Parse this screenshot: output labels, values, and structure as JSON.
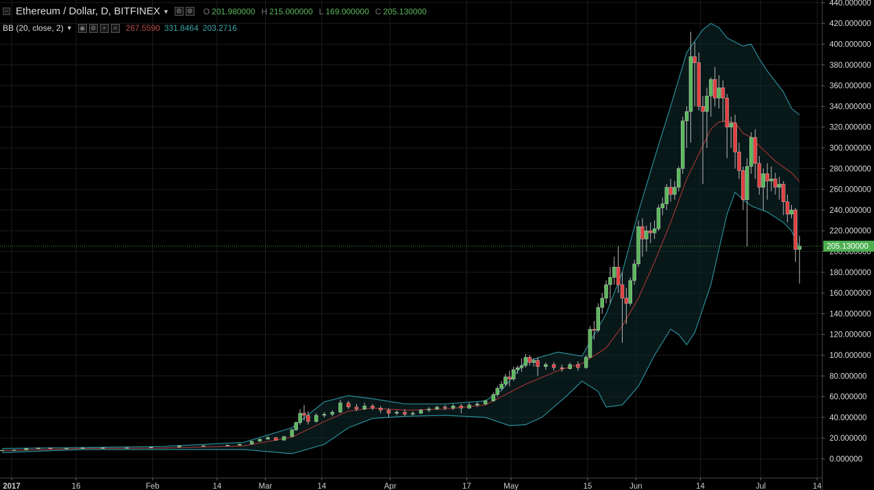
{
  "header": {
    "symbol_title": "Ethereum / Dollar, D, BITFINEX",
    "ohlc": [
      {
        "key": "O",
        "value": "201.980000"
      },
      {
        "key": "H",
        "value": "215.000000"
      },
      {
        "key": "L",
        "value": "169.000000"
      },
      {
        "key": "C",
        "value": "205.130000"
      }
    ]
  },
  "indicator": {
    "title": "BB (20, close, 2)",
    "values": [
      "267.5590",
      "331.8464",
      "203.2716"
    ],
    "value_colors": [
      "#b84a4a",
      "#3aa6a6",
      "#3aa6a6"
    ]
  },
  "colors": {
    "background": "#000000",
    "grid": "#1e1e1e",
    "up": "#5cb85c",
    "down": "#e04040",
    "bb_basis": "#a03535",
    "bb_band": "#2a8f9a",
    "last_price": "#4caf50"
  },
  "last_price_label": "205.130000",
  "chart_data": {
    "type": "candlestick",
    "title": "Ethereum / Dollar, D, BITFINEX",
    "ylim": [
      -10,
      440
    ],
    "y_ticks": [
      "440.000000",
      "420.000000",
      "400.000000",
      "380.000000",
      "360.000000",
      "340.000000",
      "320.000000",
      "300.000000",
      "280.000000",
      "260.000000",
      "240.000000",
      "220.000000",
      "200.000000",
      "180.000000",
      "160.000000",
      "140.000000",
      "120.000000",
      "100.000000",
      "80.000000",
      "60.000000",
      "40.000000",
      "20.000000",
      "0.000000"
    ],
    "x_ticks": [
      "2017",
      "16",
      "Feb",
      "14",
      "Mar",
      "14",
      "Apr",
      "17",
      "May",
      "15",
      "Jun",
      "14",
      "Jul",
      "14"
    ],
    "grid": true,
    "last_price": 205.13,
    "series_count": 1,
    "ohlc_keypoints_note": "",
    "candles": [
      {
        "d": 0,
        "o": 8.0,
        "h": 8.5,
        "c": 8.3,
        "l": 7.9
      },
      {
        "d": 3,
        "o": 8.3,
        "h": 8.9,
        "c": 8.6,
        "l": 8.1
      },
      {
        "d": 6,
        "o": 8.6,
        "h": 10.5,
        "c": 10.0,
        "l": 8.5
      },
      {
        "d": 9,
        "o": 10.0,
        "h": 11.0,
        "c": 10.4,
        "l": 9.8
      },
      {
        "d": 12,
        "o": 10.4,
        "h": 10.8,
        "c": 10.0,
        "l": 9.8
      },
      {
        "d": 16,
        "o": 10.0,
        "h": 10.5,
        "c": 10.2,
        "l": 9.9
      },
      {
        "d": 20,
        "o": 10.2,
        "h": 10.8,
        "c": 10.6,
        "l": 10.1
      },
      {
        "d": 25,
        "o": 10.6,
        "h": 11.0,
        "c": 10.7,
        "l": 10.4
      },
      {
        "d": 31,
        "o": 10.7,
        "h": 11.1,
        "c": 10.8,
        "l": 10.5
      },
      {
        "d": 37,
        "o": 10.8,
        "h": 11.5,
        "c": 11.3,
        "l": 10.7
      },
      {
        "d": 44,
        "o": 11.3,
        "h": 13.0,
        "c": 12.6,
        "l": 11.2
      },
      {
        "d": 50,
        "o": 12.6,
        "h": 13.0,
        "c": 12.8,
        "l": 12.4
      },
      {
        "d": 56,
        "o": 12.8,
        "h": 13.5,
        "c": 13.1,
        "l": 12.6
      },
      {
        "d": 59,
        "o": 13.1,
        "h": 14.5,
        "c": 14.2,
        "l": 13.0
      },
      {
        "d": 62,
        "o": 14.2,
        "h": 17.5,
        "c": 17.0,
        "l": 14.0
      },
      {
        "d": 64,
        "o": 17.0,
        "h": 19.5,
        "c": 19.0,
        "l": 16.5
      },
      {
        "d": 66,
        "o": 19.0,
        "h": 22.0,
        "c": 20.5,
        "l": 18.5
      },
      {
        "d": 68,
        "o": 20.5,
        "h": 21.0,
        "c": 18.0,
        "l": 17.5
      },
      {
        "d": 70,
        "o": 18.0,
        "h": 22.0,
        "c": 21.5,
        "l": 17.8
      },
      {
        "d": 72,
        "o": 21.5,
        "h": 29.0,
        "c": 28.0,
        "l": 21.0
      },
      {
        "d": 73,
        "o": 28.0,
        "h": 36.0,
        "c": 35.0,
        "l": 27.0
      },
      {
        "d": 74,
        "o": 35.0,
        "h": 48.0,
        "c": 44.0,
        "l": 33.0
      },
      {
        "d": 75,
        "o": 44.0,
        "h": 52.0,
        "c": 42.0,
        "l": 37.0
      },
      {
        "d": 76,
        "o": 42.0,
        "h": 46.0,
        "c": 36.0,
        "l": 33.0
      },
      {
        "d": 78,
        "o": 36.0,
        "h": 44.0,
        "c": 42.0,
        "l": 35.0
      },
      {
        "d": 80,
        "o": 42.0,
        "h": 45.0,
        "c": 43.0,
        "l": 40.0
      },
      {
        "d": 82,
        "o": 43.0,
        "h": 47.0,
        "c": 45.0,
        "l": 41.0
      },
      {
        "d": 84,
        "o": 45.0,
        "h": 57.0,
        "c": 54.0,
        "l": 44.0
      },
      {
        "d": 86,
        "o": 54.0,
        "h": 56.0,
        "c": 50.0,
        "l": 48.0
      },
      {
        "d": 88,
        "o": 50.0,
        "h": 53.0,
        "c": 48.0,
        "l": 46.0
      },
      {
        "d": 90,
        "o": 48.0,
        "h": 54.0,
        "c": 51.0,
        "l": 47.0
      },
      {
        "d": 92,
        "o": 51.0,
        "h": 53.0,
        "c": 49.0,
        "l": 47.0
      },
      {
        "d": 94,
        "o": 49.0,
        "h": 51.0,
        "c": 47.0,
        "l": 44.0
      },
      {
        "d": 96,
        "o": 47.0,
        "h": 49.0,
        "c": 44.0,
        "l": 40.0
      },
      {
        "d": 98,
        "o": 44.0,
        "h": 47.0,
        "c": 45.0,
        "l": 42.0
      },
      {
        "d": 100,
        "o": 45.0,
        "h": 48.0,
        "c": 43.0,
        "l": 41.0
      },
      {
        "d": 102,
        "o": 43.0,
        "h": 46.0,
        "c": 44.0,
        "l": 42.0
      },
      {
        "d": 104,
        "o": 44.0,
        "h": 48.0,
        "c": 47.0,
        "l": 43.0
      },
      {
        "d": 106,
        "o": 47.0,
        "h": 50.0,
        "c": 48.0,
        "l": 45.0
      },
      {
        "d": 108,
        "o": 48.0,
        "h": 51.0,
        "c": 50.0,
        "l": 47.0
      },
      {
        "d": 110,
        "o": 50.0,
        "h": 52.0,
        "c": 49.0,
        "l": 47.0
      },
      {
        "d": 112,
        "o": 49.0,
        "h": 53.0,
        "c": 51.0,
        "l": 47.0
      },
      {
        "d": 114,
        "o": 51.0,
        "h": 53.0,
        "c": 49.0,
        "l": 44.0
      },
      {
        "d": 116,
        "o": 49.0,
        "h": 54.0,
        "c": 52.0,
        "l": 48.0
      },
      {
        "d": 118,
        "o": 52.0,
        "h": 55.0,
        "c": 53.0,
        "l": 50.0
      },
      {
        "d": 120,
        "o": 53.0,
        "h": 57.0,
        "c": 56.0,
        "l": 52.0
      },
      {
        "d": 122,
        "o": 56.0,
        "h": 64.0,
        "c": 62.0,
        "l": 55.0
      },
      {
        "d": 123,
        "o": 62.0,
        "h": 70.0,
        "c": 68.0,
        "l": 60.0
      },
      {
        "d": 124,
        "o": 68.0,
        "h": 75.0,
        "c": 72.0,
        "l": 66.0
      },
      {
        "d": 125,
        "o": 72.0,
        "h": 82.0,
        "c": 79.0,
        "l": 70.0
      },
      {
        "d": 126,
        "o": 79.0,
        "h": 85.0,
        "c": 77.0,
        "l": 70.0
      },
      {
        "d": 127,
        "o": 77.0,
        "h": 89.0,
        "c": 86.0,
        "l": 75.0
      },
      {
        "d": 128,
        "o": 86.0,
        "h": 90.0,
        "c": 88.0,
        "l": 82.0
      },
      {
        "d": 129,
        "o": 88.0,
        "h": 97.0,
        "c": 90.0,
        "l": 84.0
      },
      {
        "d": 130,
        "o": 90.0,
        "h": 101.0,
        "c": 98.0,
        "l": 88.0
      },
      {
        "d": 131,
        "o": 98.0,
        "h": 100.0,
        "c": 93.0,
        "l": 90.0
      },
      {
        "d": 132,
        "o": 93.0,
        "h": 97.0,
        "c": 95.0,
        "l": 89.0
      },
      {
        "d": 133,
        "o": 95.0,
        "h": 98.0,
        "c": 89.0,
        "l": 80.0
      },
      {
        "d": 135,
        "o": 89.0,
        "h": 93.0,
        "c": 91.0,
        "l": 86.0
      },
      {
        "d": 137,
        "o": 91.0,
        "h": 93.0,
        "c": 88.0,
        "l": 85.0
      },
      {
        "d": 139,
        "o": 88.0,
        "h": 91.0,
        "c": 87.0,
        "l": 84.0
      },
      {
        "d": 141,
        "o": 87.0,
        "h": 93.0,
        "c": 91.0,
        "l": 86.0
      },
      {
        "d": 143,
        "o": 91.0,
        "h": 94.0,
        "c": 88.0,
        "l": 85.0
      },
      {
        "d": 145,
        "o": 88.0,
        "h": 100.0,
        "c": 98.0,
        "l": 87.0
      },
      {
        "d": 146,
        "o": 98.0,
        "h": 128.0,
        "c": 125.0,
        "l": 97.0
      },
      {
        "d": 147,
        "o": 125.0,
        "h": 133.0,
        "c": 124.0,
        "l": 115.0
      },
      {
        "d": 148,
        "o": 124.0,
        "h": 150.0,
        "c": 146.0,
        "l": 122.0
      },
      {
        "d": 149,
        "o": 146.0,
        "h": 160.0,
        "c": 155.0,
        "l": 140.0
      },
      {
        "d": 150,
        "o": 155.0,
        "h": 172.0,
        "c": 168.0,
        "l": 150.0
      },
      {
        "d": 151,
        "o": 168.0,
        "h": 185.0,
        "c": 175.0,
        "l": 150.0
      },
      {
        "d": 152,
        "o": 175.0,
        "h": 195.0,
        "c": 185.0,
        "l": 168.0
      },
      {
        "d": 153,
        "o": 185.0,
        "h": 205.0,
        "c": 168.0,
        "l": 160.0
      },
      {
        "d": 154,
        "o": 168.0,
        "h": 180.0,
        "c": 155.0,
        "l": 112.0
      },
      {
        "d": 155,
        "o": 155.0,
        "h": 165.0,
        "c": 150.0,
        "l": 130.0
      },
      {
        "d": 156,
        "o": 150.0,
        "h": 175.0,
        "c": 172.0,
        "l": 148.0
      },
      {
        "d": 157,
        "o": 172.0,
        "h": 192.0,
        "c": 188.0,
        "l": 168.0
      },
      {
        "d": 158,
        "o": 188.0,
        "h": 230.0,
        "c": 224.0,
        "l": 185.0
      },
      {
        "d": 159,
        "o": 224.0,
        "h": 232.0,
        "c": 212.0,
        "l": 195.0
      },
      {
        "d": 160,
        "o": 212.0,
        "h": 225.0,
        "c": 220.0,
        "l": 200.0
      },
      {
        "d": 161,
        "o": 220.0,
        "h": 228.0,
        "c": 218.0,
        "l": 208.0
      },
      {
        "d": 162,
        "o": 218.0,
        "h": 230.0,
        "c": 222.0,
        "l": 212.0
      },
      {
        "d": 163,
        "o": 222.0,
        "h": 245.0,
        "c": 242.0,
        "l": 220.0
      },
      {
        "d": 164,
        "o": 242.0,
        "h": 252.0,
        "c": 246.0,
        "l": 235.0
      },
      {
        "d": 165,
        "o": 246.0,
        "h": 265.0,
        "c": 262.0,
        "l": 240.0
      },
      {
        "d": 166,
        "o": 262.0,
        "h": 270.0,
        "c": 255.0,
        "l": 248.0
      },
      {
        "d": 167,
        "o": 255.0,
        "h": 268.0,
        "c": 262.0,
        "l": 250.0
      },
      {
        "d": 168,
        "o": 262.0,
        "h": 282.0,
        "c": 280.0,
        "l": 258.0
      },
      {
        "d": 169,
        "o": 280.0,
        "h": 330.0,
        "c": 326.0,
        "l": 275.0
      },
      {
        "d": 170,
        "o": 326.0,
        "h": 340.0,
        "c": 335.0,
        "l": 300.0
      },
      {
        "d": 171,
        "o": 335.0,
        "h": 412.0,
        "c": 388.0,
        "l": 305.0
      },
      {
        "d": 172,
        "o": 388.0,
        "h": 402.0,
        "c": 382.0,
        "l": 340.0
      },
      {
        "d": 173,
        "o": 382.0,
        "h": 392.0,
        "c": 340.0,
        "l": 336.0
      },
      {
        "d": 174,
        "o": 340.0,
        "h": 350.0,
        "c": 335.0,
        "l": 265.0
      },
      {
        "d": 175,
        "o": 335.0,
        "h": 358.0,
        "c": 350.0,
        "l": 300.0
      },
      {
        "d": 176,
        "o": 350.0,
        "h": 368.0,
        "c": 366.0,
        "l": 330.0
      },
      {
        "d": 177,
        "o": 366.0,
        "h": 378.0,
        "c": 348.0,
        "l": 340.0
      },
      {
        "d": 178,
        "o": 348.0,
        "h": 370.0,
        "c": 358.0,
        "l": 338.0
      },
      {
        "d": 179,
        "o": 358.0,
        "h": 365.0,
        "c": 348.0,
        "l": 325.0
      },
      {
        "d": 180,
        "o": 348.0,
        "h": 352.0,
        "c": 320.0,
        "l": 290.0
      },
      {
        "d": 181,
        "o": 320.0,
        "h": 330.0,
        "c": 324.0,
        "l": 300.0
      },
      {
        "d": 182,
        "o": 324.0,
        "h": 332.0,
        "c": 296.0,
        "l": 280.0
      },
      {
        "d": 183,
        "o": 296.0,
        "h": 305.0,
        "c": 278.0,
        "l": 270.0
      },
      {
        "d": 184,
        "o": 278.0,
        "h": 282.0,
        "c": 250.0,
        "l": 240.0
      },
      {
        "d": 185,
        "o": 250.0,
        "h": 290.0,
        "c": 282.0,
        "l": 205.0
      },
      {
        "d": 186,
        "o": 282.0,
        "h": 315.0,
        "c": 310.0,
        "l": 275.0
      },
      {
        "d": 187,
        "o": 310.0,
        "h": 318.0,
        "c": 285.0,
        "l": 270.0
      },
      {
        "d": 188,
        "o": 285.0,
        "h": 292.0,
        "c": 262.0,
        "l": 255.0
      },
      {
        "d": 189,
        "o": 262.0,
        "h": 280.0,
        "c": 275.0,
        "l": 240.0
      },
      {
        "d": 190,
        "o": 275.0,
        "h": 285.0,
        "c": 268.0,
        "l": 250.0
      },
      {
        "d": 191,
        "o": 268.0,
        "h": 282.0,
        "c": 270.0,
        "l": 258.0
      },
      {
        "d": 192,
        "o": 270.0,
        "h": 276.0,
        "c": 262.0,
        "l": 255.0
      },
      {
        "d": 193,
        "o": 262.0,
        "h": 272.0,
        "c": 265.0,
        "l": 250.0
      },
      {
        "d": 194,
        "o": 265.0,
        "h": 268.0,
        "c": 248.0,
        "l": 235.0
      },
      {
        "d": 195,
        "o": 248.0,
        "h": 255.0,
        "c": 236.0,
        "l": 228.0
      },
      {
        "d": 196,
        "o": 236.0,
        "h": 245.0,
        "c": 240.0,
        "l": 232.0
      },
      {
        "d": 197,
        "o": 240.0,
        "h": 242.0,
        "c": 202.0,
        "l": 190.0
      },
      {
        "d": 198,
        "o": 201.98,
        "h": 215.0,
        "c": 205.13,
        "l": 169.0
      }
    ],
    "bb_upper": [
      [
        0,
        10
      ],
      [
        20,
        11
      ],
      [
        40,
        12
      ],
      [
        60,
        16
      ],
      [
        72,
        30
      ],
      [
        80,
        55
      ],
      [
        86,
        61
      ],
      [
        92,
        58
      ],
      [
        100,
        53
      ],
      [
        110,
        53
      ],
      [
        120,
        56
      ],
      [
        124,
        66
      ],
      [
        130,
        94
      ],
      [
        138,
        103
      ],
      [
        144,
        99
      ],
      [
        150,
        140
      ],
      [
        154,
        180
      ],
      [
        158,
        238
      ],
      [
        162,
        290
      ],
      [
        166,
        340
      ],
      [
        170,
        392
      ],
      [
        174,
        414
      ],
      [
        176,
        420
      ],
      [
        178,
        416
      ],
      [
        180,
        406
      ],
      [
        184,
        398
      ],
      [
        186,
        400
      ],
      [
        188,
        386
      ],
      [
        190,
        374
      ],
      [
        194,
        354
      ],
      [
        196,
        338
      ],
      [
        198,
        331.8464
      ]
    ],
    "bb_basis": [
      [
        0,
        8
      ],
      [
        20,
        10
      ],
      [
        40,
        10.5
      ],
      [
        60,
        12.5
      ],
      [
        72,
        21
      ],
      [
        80,
        36
      ],
      [
        86,
        46
      ],
      [
        92,
        49
      ],
      [
        100,
        47
      ],
      [
        110,
        48
      ],
      [
        120,
        52
      ],
      [
        124,
        60
      ],
      [
        130,
        72
      ],
      [
        138,
        85
      ],
      [
        144,
        92
      ],
      [
        150,
        107
      ],
      [
        154,
        128
      ],
      [
        158,
        155
      ],
      [
        162,
        190
      ],
      [
        166,
        228
      ],
      [
        170,
        270
      ],
      [
        174,
        302
      ],
      [
        176,
        318
      ],
      [
        178,
        325
      ],
      [
        180,
        326
      ],
      [
        182,
        324
      ],
      [
        184,
        314
      ],
      [
        186,
        310
      ],
      [
        188,
        302
      ],
      [
        192,
        287
      ],
      [
        196,
        276
      ],
      [
        198,
        267.559
      ]
    ],
    "bb_lower": [
      [
        0,
        6
      ],
      [
        20,
        9
      ],
      [
        40,
        9
      ],
      [
        60,
        9
      ],
      [
        66,
        7
      ],
      [
        72,
        5
      ],
      [
        80,
        14
      ],
      [
        86,
        30
      ],
      [
        92,
        39
      ],
      [
        100,
        41
      ],
      [
        110,
        42
      ],
      [
        120,
        40
      ],
      [
        126,
        32
      ],
      [
        130,
        33
      ],
      [
        134,
        40
      ],
      [
        140,
        60
      ],
      [
        144,
        75
      ],
      [
        148,
        65
      ],
      [
        150,
        50
      ],
      [
        154,
        52
      ],
      [
        158,
        70
      ],
      [
        162,
        100
      ],
      [
        166,
        125
      ],
      [
        168,
        120
      ],
      [
        170,
        110
      ],
      [
        172,
        122
      ],
      [
        174,
        145
      ],
      [
        176,
        168
      ],
      [
        178,
        202
      ],
      [
        180,
        236
      ],
      [
        182,
        257
      ],
      [
        184,
        250
      ],
      [
        186,
        244
      ],
      [
        190,
        238
      ],
      [
        194,
        228
      ],
      [
        196,
        220
      ],
      [
        198,
        203.2716
      ]
    ]
  }
}
